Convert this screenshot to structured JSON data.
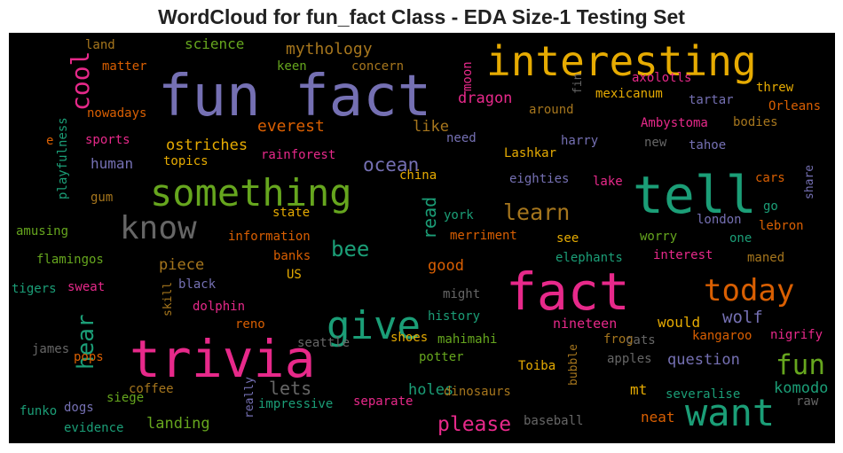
{
  "chart_data": {
    "type": "wordcloud",
    "title": "WordCloud for fun_fact Class - EDA Size-1 Testing Set",
    "background": "#000000",
    "colormap": "Dark2",
    "words": [
      {
        "text": "fun fact",
        "color": "#7570b3"
      },
      {
        "text": "interesting",
        "color": "#e6ab02"
      },
      {
        "text": "trivia",
        "color": "#e7298a"
      },
      {
        "text": "fact",
        "color": "#e7298a"
      },
      {
        "text": "tell",
        "color": "#1b9e77"
      },
      {
        "text": "something",
        "color": "#66a61e"
      },
      {
        "text": "give",
        "color": "#1b9e77"
      },
      {
        "text": "want",
        "color": "#1b9e77"
      },
      {
        "text": "know",
        "color": "#666666"
      },
      {
        "text": "today",
        "color": "#d95f02"
      },
      {
        "text": "fun",
        "color": "#66a61e"
      },
      {
        "text": "learn",
        "color": "#a6761d"
      },
      {
        "text": "hear",
        "color": "#1b9e77"
      },
      {
        "text": "cool",
        "color": "#e7298a"
      },
      {
        "text": "please",
        "color": "#e7298a"
      },
      {
        "text": "bee",
        "color": "#1b9e77"
      },
      {
        "text": "ocean",
        "color": "#7570b3"
      },
      {
        "text": "lets",
        "color": "#666666"
      },
      {
        "text": "read",
        "color": "#1b9e77"
      },
      {
        "text": "wolf",
        "color": "#7570b3"
      },
      {
        "text": "everest",
        "color": "#d95f02"
      },
      {
        "text": "dragon",
        "color": "#e7298a"
      },
      {
        "text": "question",
        "color": "#7570b3"
      },
      {
        "text": "mythology",
        "color": "#a6761d"
      },
      {
        "text": "science",
        "color": "#66a61e"
      },
      {
        "text": "ostriches",
        "color": "#e6ab02"
      },
      {
        "text": "landing",
        "color": "#66a61e"
      },
      {
        "text": "holes",
        "color": "#1b9e77"
      },
      {
        "text": "komodo",
        "color": "#1b9e77"
      },
      {
        "text": "good",
        "color": "#d95f02"
      },
      {
        "text": "piece",
        "color": "#a6761d"
      },
      {
        "text": "human",
        "color": "#7570b3"
      },
      {
        "text": "like",
        "color": "#a6761d"
      },
      {
        "text": "would",
        "color": "#e6ab02"
      },
      {
        "text": "mt",
        "color": "#e6ab02"
      },
      {
        "text": "neat",
        "color": "#d95f02"
      },
      {
        "text": "nineteen",
        "color": "#e7298a"
      },
      {
        "text": "moon",
        "color": "#e7298a"
      },
      {
        "text": "land",
        "color": "#a6761d"
      },
      {
        "text": "matter",
        "color": "#d95f02"
      },
      {
        "text": "nowadays",
        "color": "#d95f02"
      },
      {
        "text": "sports",
        "color": "#e7298a"
      },
      {
        "text": "topics",
        "color": "#e6ab02"
      },
      {
        "text": "rainforest",
        "color": "#e7298a"
      },
      {
        "text": "keen",
        "color": "#66a61e"
      },
      {
        "text": "concern",
        "color": "#a6761d"
      },
      {
        "text": "fin",
        "color": "#666666"
      },
      {
        "text": "axolotls",
        "color": "#e7298a"
      },
      {
        "text": "mexicanum",
        "color": "#e6ab02"
      },
      {
        "text": "threw",
        "color": "#e6ab02"
      },
      {
        "text": "tartar",
        "color": "#7570b3"
      },
      {
        "text": "Orleans",
        "color": "#d95f02"
      },
      {
        "text": "around",
        "color": "#a6761d"
      },
      {
        "text": "Ambystoma",
        "color": "#e7298a"
      },
      {
        "text": "bodies",
        "color": "#a6761d"
      },
      {
        "text": "need",
        "color": "#7570b3"
      },
      {
        "text": "harry",
        "color": "#7570b3"
      },
      {
        "text": "new",
        "color": "#666666"
      },
      {
        "text": "tahoe",
        "color": "#7570b3"
      },
      {
        "text": "Lashkar",
        "color": "#e6ab02"
      },
      {
        "text": "china",
        "color": "#e6ab02"
      },
      {
        "text": "eighties",
        "color": "#7570b3"
      },
      {
        "text": "lake",
        "color": "#e7298a"
      },
      {
        "text": "cars",
        "color": "#d95f02"
      },
      {
        "text": "share",
        "color": "#7570b3"
      },
      {
        "text": "go",
        "color": "#1b9e77"
      },
      {
        "text": "london",
        "color": "#7570b3"
      },
      {
        "text": "lebron",
        "color": "#d95f02"
      },
      {
        "text": "one",
        "color": "#1b9e77"
      },
      {
        "text": "worry",
        "color": "#66a61e"
      },
      {
        "text": "see",
        "color": "#e6ab02"
      },
      {
        "text": "merriment",
        "color": "#d95f02"
      },
      {
        "text": "york",
        "color": "#1b9e77"
      },
      {
        "text": "state",
        "color": "#e6ab02"
      },
      {
        "text": "information",
        "color": "#d95f02"
      },
      {
        "text": "banks",
        "color": "#d95f02"
      },
      {
        "text": "US",
        "color": "#e6ab02"
      },
      {
        "text": "interest",
        "color": "#e7298a"
      },
      {
        "text": "elephants",
        "color": "#1b9e77"
      },
      {
        "text": "maned",
        "color": "#a6761d"
      },
      {
        "text": "black",
        "color": "#7570b3"
      },
      {
        "text": "skill",
        "color": "#a6761d"
      },
      {
        "text": "dolphin",
        "color": "#e7298a"
      },
      {
        "text": "reno",
        "color": "#d95f02"
      },
      {
        "text": "might",
        "color": "#666666"
      },
      {
        "text": "history",
        "color": "#1b9e77"
      },
      {
        "text": "seattle",
        "color": "#666666"
      },
      {
        "text": "shoes",
        "color": "#e6ab02"
      },
      {
        "text": "mahimahi",
        "color": "#66a61e"
      },
      {
        "text": "frog",
        "color": "#a6761d"
      },
      {
        "text": "cats",
        "color": "#666666"
      },
      {
        "text": "kangaroo",
        "color": "#d95f02"
      },
      {
        "text": "nigrify",
        "color": "#e7298a"
      },
      {
        "text": "potter",
        "color": "#66a61e"
      },
      {
        "text": "Toiba",
        "color": "#e6ab02"
      },
      {
        "text": "bubble",
        "color": "#a6761d"
      },
      {
        "text": "apples",
        "color": "#666666"
      },
      {
        "text": "playfulness",
        "color": "#1b9e77"
      },
      {
        "text": "gum",
        "color": "#a6761d"
      },
      {
        "text": "e",
        "color": "#d95f02"
      },
      {
        "text": "amusing",
        "color": "#66a61e"
      },
      {
        "text": "flamingos",
        "color": "#66a61e"
      },
      {
        "text": "tigers",
        "color": "#1b9e77"
      },
      {
        "text": "sweat",
        "color": "#e7298a"
      },
      {
        "text": "james",
        "color": "#666666"
      },
      {
        "text": "pops",
        "color": "#d95f02"
      },
      {
        "text": "siege",
        "color": "#66a61e"
      },
      {
        "text": "coffee",
        "color": "#a6761d"
      },
      {
        "text": "funko",
        "color": "#1b9e77"
      },
      {
        "text": "dogs",
        "color": "#7570b3"
      },
      {
        "text": "evidence",
        "color": "#1b9e77"
      },
      {
        "text": "really",
        "color": "#7570b3"
      },
      {
        "text": "impressive",
        "color": "#1b9e77"
      },
      {
        "text": "separate",
        "color": "#e7298a"
      },
      {
        "text": "dinosaurs",
        "color": "#a6761d"
      },
      {
        "text": "baseball",
        "color": "#666666"
      },
      {
        "text": "severalise",
        "color": "#1b9e77"
      },
      {
        "text": "raw",
        "color": "#666666"
      }
    ]
  }
}
